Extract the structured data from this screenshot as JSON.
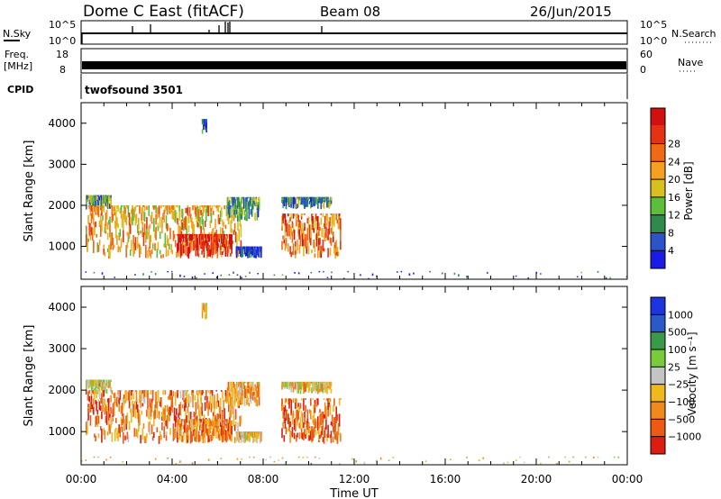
{
  "header": {
    "station": "Dome C East (fitACF)",
    "beam": "Beam 08",
    "date": "26/Jun/2015"
  },
  "strip_panels": {
    "nsky": {
      "label": "N.Sky",
      "ticks": [
        "10^5",
        "10^0"
      ],
      "right_label": "N.Search",
      "right_ticks": [
        "10^5",
        "10^0"
      ]
    },
    "freq": {
      "label_line1": "Freq.",
      "label_line2": "[MHz]",
      "ticks": [
        "18",
        "8"
      ],
      "right_label": "Nave",
      "right_ticks": [
        "60",
        "0"
      ]
    },
    "cpid": {
      "label": "CPID",
      "value": "twofsound 3501"
    }
  },
  "colors": {
    "power_scale": [
      "#1b1be6",
      "#2a55c8",
      "#2f8a4c",
      "#5cbf3c",
      "#d8c020",
      "#f5a020",
      "#f06a14",
      "#e63214",
      "#d21010"
    ],
    "velocity_scale": [
      "#1b36e0",
      "#2a5ac8",
      "#3a9a4a",
      "#78cc3c",
      "#c4c4c4",
      "#f0b81c",
      "#f08a1c",
      "#ec5a14",
      "#dc1e10"
    ]
  },
  "chart_data": [
    {
      "type": "heatmap",
      "title": "Power",
      "xlabel": "Time UT",
      "ylabel": "Slant Range [km]",
      "x_ticks": [
        "00:00",
        "04:00",
        "08:00",
        "12:00",
        "16:00",
        "20:00",
        "00:00"
      ],
      "xlim": [
        0,
        24
      ],
      "ylim": [
        200,
        4500
      ],
      "y_ticks": [
        1000,
        2000,
        3000,
        4000
      ],
      "colorbar": {
        "label": "Power [dB]",
        "ticks": [
          4,
          8,
          12,
          16,
          20,
          24,
          28
        ],
        "range": [
          0,
          32
        ]
      },
      "patches": [
        {
          "t0": 0.2,
          "t1": 1.3,
          "r0": 1900,
          "r1": 2250,
          "level": 0.3
        },
        {
          "t0": 0.2,
          "t1": 7.0,
          "r0": 700,
          "r1": 2000,
          "level": 0.6
        },
        {
          "t0": 4.2,
          "t1": 6.6,
          "r0": 700,
          "r1": 1300,
          "level": 0.9
        },
        {
          "t0": 6.4,
          "t1": 7.8,
          "r0": 1600,
          "r1": 2200,
          "level": 0.3
        },
        {
          "t0": 6.8,
          "t1": 7.9,
          "r0": 700,
          "r1": 1000,
          "level": 0.1
        },
        {
          "t0": 8.8,
          "t1": 11.4,
          "r0": 700,
          "r1": 1800,
          "level": 0.7
        },
        {
          "t0": 8.8,
          "t1": 11.0,
          "r0": 1900,
          "r1": 2200,
          "level": 0.25
        },
        {
          "t0": 5.3,
          "t1": 5.5,
          "r0": 3700,
          "r1": 4100,
          "level": 0.2
        },
        {
          "t0": 0.0,
          "t1": 24.0,
          "r0": 200,
          "r1": 400,
          "level": 0.15
        }
      ]
    },
    {
      "type": "heatmap",
      "title": "Velocity",
      "xlabel": "Time UT",
      "ylabel": "Slant Range [km]",
      "x_ticks": [
        "00:00",
        "04:00",
        "08:00",
        "12:00",
        "16:00",
        "20:00",
        "00:00"
      ],
      "xlim": [
        0,
        24
      ],
      "ylim": [
        200,
        4500
      ],
      "y_ticks": [
        1000,
        2000,
        3000,
        4000
      ],
      "colorbar": {
        "label": "Velocity [m s⁻¹]",
        "ticks": [
          "1000",
          "500",
          "100",
          "25",
          "−25",
          "−100",
          "−500",
          "−1000"
        ]
      },
      "patches": [
        {
          "t0": 0.2,
          "t1": 1.3,
          "r0": 1900,
          "r1": 2250,
          "level": 0.55
        },
        {
          "t0": 0.2,
          "t1": 7.0,
          "r0": 700,
          "r1": 2000,
          "level": 0.75
        },
        {
          "t0": 4.2,
          "t1": 6.6,
          "r0": 700,
          "r1": 1300,
          "level": 0.72
        },
        {
          "t0": 6.4,
          "t1": 7.8,
          "r0": 1600,
          "r1": 2200,
          "level": 0.65
        },
        {
          "t0": 6.8,
          "t1": 7.9,
          "r0": 700,
          "r1": 1000,
          "level": 0.6
        },
        {
          "t0": 8.8,
          "t1": 11.4,
          "r0": 700,
          "r1": 1800,
          "level": 0.8
        },
        {
          "t0": 8.8,
          "t1": 11.0,
          "r0": 1900,
          "r1": 2200,
          "level": 0.6
        },
        {
          "t0": 5.3,
          "t1": 5.5,
          "r0": 3700,
          "r1": 4100,
          "level": 0.5
        },
        {
          "t0": 0.0,
          "t1": 24.0,
          "r0": 200,
          "r1": 400,
          "level": 0.55
        }
      ]
    }
  ]
}
